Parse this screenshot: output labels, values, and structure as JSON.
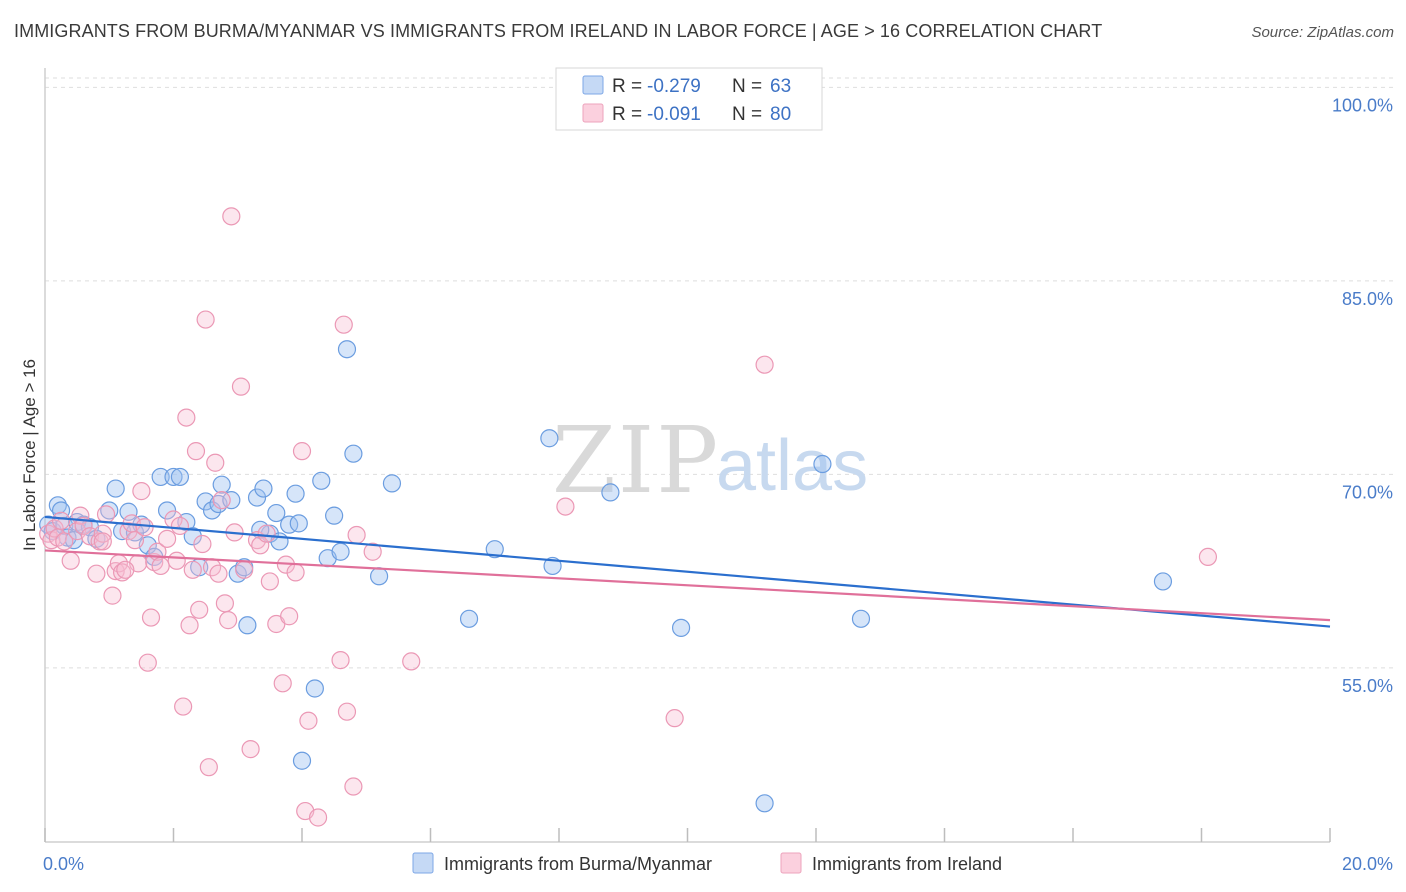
{
  "title": "IMMIGRANTS FROM BURMA/MYANMAR VS IMMIGRANTS FROM IRELAND IN LABOR FORCE | AGE > 16 CORRELATION CHART",
  "source": "Source: ZipAtlas.com",
  "watermark": {
    "part1": "ZIP",
    "part2": "atlas"
  },
  "legend_box": {
    "rows": [
      {
        "r_label": "R =",
        "r_value": "-0.279",
        "n_label": "N =",
        "n_value": "63"
      },
      {
        "r_label": "R =",
        "r_value": "-0.091",
        "n_label": "N =",
        "n_value": "80"
      }
    ]
  },
  "chart_data": {
    "type": "scatter",
    "title": "IMMIGRANTS FROM BURMA/MYANMAR VS IMMIGRANTS FROM IRELAND IN LABOR FORCE | AGE > 16 CORRELATION CHART",
    "xlabel": "",
    "ylabel": "In Labor Force | Age > 16",
    "xlim": [
      0,
      20
    ],
    "ylim": [
      41.5,
      101.5
    ],
    "x_ticks": [
      "0.0%",
      "20.0%"
    ],
    "y_ticks": [
      {
        "value": 55,
        "label": "55.0%"
      },
      {
        "value": 70,
        "label": "70.0%"
      },
      {
        "value": 85,
        "label": "85.0%"
      },
      {
        "value": 100,
        "label": "100.0%"
      }
    ],
    "grid": true,
    "legend_position": "bottom",
    "colors": {
      "burma": "#6b9de0",
      "ireland": "#f0a0bb",
      "burma_line": "#2b6fce",
      "ireland_line": "#e0709a"
    },
    "series": [
      {
        "name": "Immigrants from Burma/Myanmar",
        "r": -0.279,
        "n": 63,
        "trend": {
          "x": [
            0,
            20
          ],
          "y": [
            66.7,
            58.2
          ]
        },
        "points": [
          [
            0.05,
            66.1
          ],
          [
            0.12,
            65.6
          ],
          [
            0.2,
            67.6
          ],
          [
            0.25,
            67.2
          ],
          [
            0.3,
            66.0
          ],
          [
            0.35,
            65.1
          ],
          [
            0.45,
            64.9
          ],
          [
            0.5,
            66.3
          ],
          [
            0.6,
            66.1
          ],
          [
            0.7,
            65.9
          ],
          [
            0.8,
            65.0
          ],
          [
            1.0,
            67.2
          ],
          [
            1.1,
            68.9
          ],
          [
            1.2,
            65.6
          ],
          [
            1.3,
            67.1
          ],
          [
            1.4,
            65.5
          ],
          [
            1.5,
            66.1
          ],
          [
            1.6,
            64.5
          ],
          [
            1.7,
            63.6
          ],
          [
            1.8,
            69.8
          ],
          [
            1.9,
            67.2
          ],
          [
            2.0,
            69.8
          ],
          [
            2.1,
            69.8
          ],
          [
            2.2,
            66.3
          ],
          [
            2.3,
            65.2
          ],
          [
            2.4,
            62.8
          ],
          [
            2.5,
            67.9
          ],
          [
            2.6,
            67.2
          ],
          [
            2.7,
            67.7
          ],
          [
            2.75,
            69.2
          ],
          [
            2.9,
            68.0
          ],
          [
            3.0,
            62.3
          ],
          [
            3.1,
            62.8
          ],
          [
            3.15,
            58.3
          ],
          [
            3.3,
            68.2
          ],
          [
            3.4,
            68.9
          ],
          [
            3.5,
            65.4
          ],
          [
            3.6,
            67.0
          ],
          [
            3.65,
            64.8
          ],
          [
            3.8,
            66.1
          ],
          [
            3.9,
            68.5
          ],
          [
            3.95,
            66.2
          ],
          [
            4.0,
            47.8
          ],
          [
            4.2,
            53.4
          ],
          [
            4.3,
            69.5
          ],
          [
            4.4,
            63.5
          ],
          [
            4.5,
            66.8
          ],
          [
            4.6,
            64.0
          ],
          [
            4.8,
            71.6
          ],
          [
            4.7,
            79.7
          ],
          [
            5.2,
            62.1
          ],
          [
            5.4,
            69.3
          ],
          [
            6.6,
            58.8
          ],
          [
            7.0,
            64.2
          ],
          [
            7.9,
            62.9
          ],
          [
            7.85,
            72.8
          ],
          [
            8.8,
            68.6
          ],
          [
            9.9,
            58.1
          ],
          [
            11.2,
            44.5
          ],
          [
            12.1,
            70.8
          ],
          [
            12.7,
            58.8
          ],
          [
            17.4,
            61.7
          ],
          [
            3.35,
            65.7
          ]
        ]
      },
      {
        "name": "Immigrants from Ireland",
        "r": -0.091,
        "n": 80,
        "trend": {
          "x": [
            0,
            20
          ],
          "y": [
            64.1,
            58.7
          ]
        },
        "points": [
          [
            0.05,
            65.4
          ],
          [
            0.1,
            64.9
          ],
          [
            0.15,
            65.8
          ],
          [
            0.2,
            65.1
          ],
          [
            0.3,
            64.8
          ],
          [
            0.4,
            63.3
          ],
          [
            0.5,
            65.6
          ],
          [
            0.55,
            66.8
          ],
          [
            0.6,
            66.0
          ],
          [
            0.7,
            65.2
          ],
          [
            0.8,
            62.3
          ],
          [
            0.85,
            64.8
          ],
          [
            0.9,
            65.4
          ],
          [
            0.95,
            66.9
          ],
          [
            1.05,
            60.6
          ],
          [
            1.1,
            62.5
          ],
          [
            1.15,
            63.1
          ],
          [
            1.2,
            62.4
          ],
          [
            1.3,
            65.6
          ],
          [
            1.35,
            66.2
          ],
          [
            1.4,
            64.9
          ],
          [
            1.45,
            63.1
          ],
          [
            1.5,
            68.7
          ],
          [
            1.55,
            65.9
          ],
          [
            1.6,
            55.4
          ],
          [
            1.65,
            58.9
          ],
          [
            1.7,
            63.2
          ],
          [
            1.75,
            64.0
          ],
          [
            1.8,
            62.9
          ],
          [
            1.9,
            65.0
          ],
          [
            2.0,
            66.5
          ],
          [
            2.05,
            63.3
          ],
          [
            2.1,
            66.0
          ],
          [
            2.15,
            52.0
          ],
          [
            2.2,
            74.4
          ],
          [
            2.25,
            58.3
          ],
          [
            2.3,
            62.6
          ],
          [
            2.35,
            71.8
          ],
          [
            2.4,
            59.5
          ],
          [
            2.45,
            64.6
          ],
          [
            2.5,
            82.0
          ],
          [
            2.55,
            47.3
          ],
          [
            2.6,
            62.8
          ],
          [
            2.65,
            70.9
          ],
          [
            2.7,
            62.3
          ],
          [
            2.75,
            68.0
          ],
          [
            2.85,
            58.7
          ],
          [
            2.9,
            90.0
          ],
          [
            2.95,
            65.5
          ],
          [
            3.05,
            76.8
          ],
          [
            3.1,
            62.6
          ],
          [
            3.2,
            48.7
          ],
          [
            3.3,
            64.9
          ],
          [
            3.35,
            64.5
          ],
          [
            3.45,
            65.4
          ],
          [
            3.5,
            61.7
          ],
          [
            3.6,
            58.4
          ],
          [
            3.7,
            53.8
          ],
          [
            3.75,
            63.0
          ],
          [
            3.8,
            59.0
          ],
          [
            4.0,
            71.8
          ],
          [
            4.05,
            43.9
          ],
          [
            4.1,
            50.9
          ],
          [
            4.25,
            43.4
          ],
          [
            4.6,
            55.6
          ],
          [
            4.65,
            81.6
          ],
          [
            4.7,
            51.6
          ],
          [
            4.8,
            45.8
          ],
          [
            4.85,
            65.3
          ],
          [
            5.1,
            64.0
          ],
          [
            5.7,
            55.5
          ],
          [
            8.1,
            67.5
          ],
          [
            9.8,
            51.1
          ],
          [
            11.2,
            78.5
          ],
          [
            18.1,
            63.6
          ],
          [
            0.25,
            66.4
          ],
          [
            0.9,
            64.8
          ],
          [
            1.25,
            62.6
          ],
          [
            2.8,
            60.0
          ],
          [
            3.9,
            62.4
          ]
        ]
      }
    ]
  },
  "bottom_legend": [
    {
      "label": "Immigrants from Burma/Myanmar"
    },
    {
      "label": "Immigrants from Ireland"
    }
  ]
}
